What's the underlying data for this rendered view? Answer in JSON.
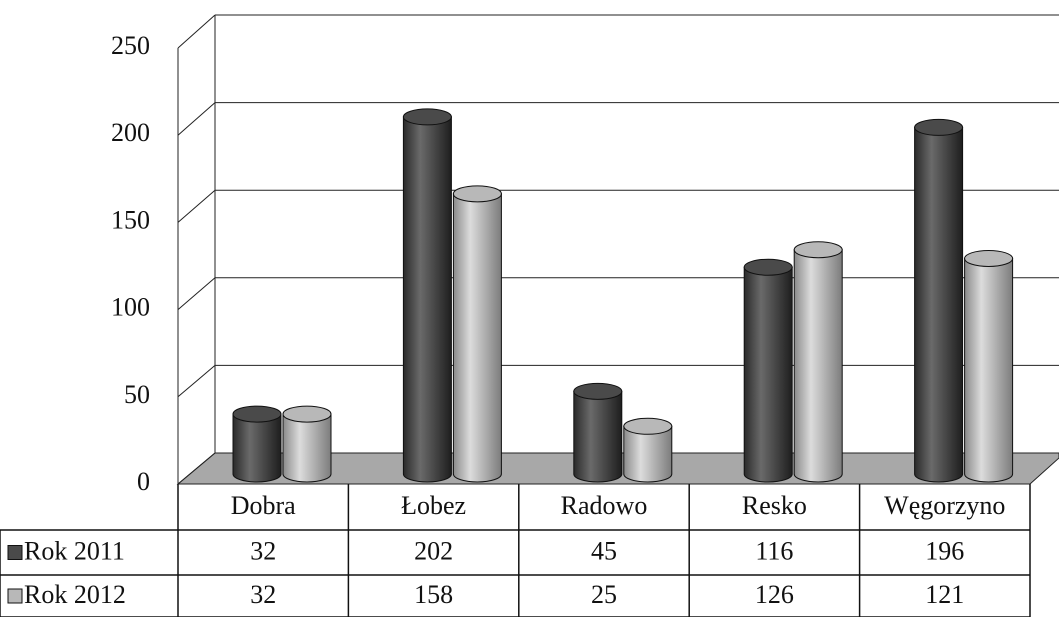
{
  "chart_data": {
    "type": "bar",
    "categories": [
      "Dobra",
      "Łobez",
      "Radowo",
      "Resko",
      "Węgorzyno"
    ],
    "series": [
      {
        "name": "Rok 2011",
        "color": "#4a4a4a",
        "values": [
          32,
          202,
          45,
          116,
          196
        ]
      },
      {
        "name": "Rok 2012",
        "color": "#b8b8b8",
        "values": [
          32,
          158,
          25,
          126,
          121
        ]
      }
    ],
    "ylim": [
      0,
      250
    ],
    "yticks": [
      0,
      50,
      100,
      150,
      200,
      250
    ],
    "grid": true
  }
}
